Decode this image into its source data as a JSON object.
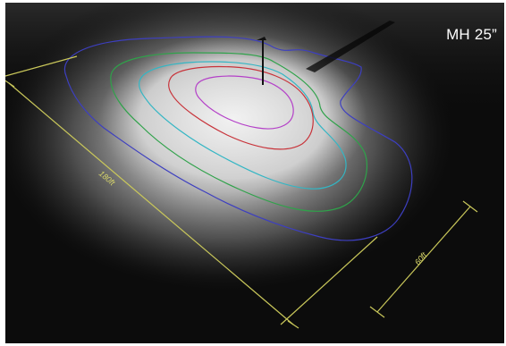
{
  "scene": {
    "mounting_height_label": "MH 25”",
    "dimensions": {
      "length_label": "180ft",
      "width_label": "60ft"
    },
    "colors": {
      "background": "#0c0c0c",
      "dimension_line": "#c9c75a",
      "contour_outer": "#3d3fc0",
      "contour_2": "#2fa24a",
      "contour_3": "#33b6c4",
      "contour_4": "#c8333a",
      "contour_inner": "#b440c8",
      "pole": "#111111"
    },
    "contour_count": 5
  }
}
